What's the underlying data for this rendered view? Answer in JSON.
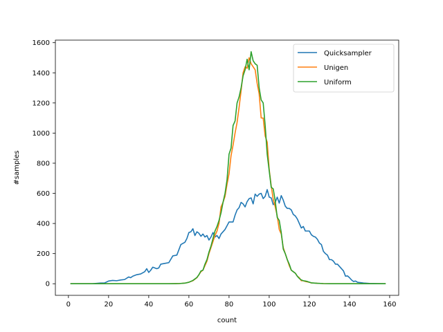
{
  "chart_data": {
    "type": "line",
    "title": "",
    "xlabel": "count",
    "ylabel": "#samples",
    "xlim": [
      -6.5,
      164.5
    ],
    "ylim": [
      -77,
      1617
    ],
    "xticks": [
      0,
      20,
      40,
      60,
      80,
      100,
      120,
      140,
      160
    ],
    "yticks": [
      0,
      200,
      400,
      600,
      800,
      1000,
      1200,
      1400,
      1600
    ],
    "grid": false,
    "legend_position": "upper right",
    "series": [
      {
        "name": "Quicksampler",
        "color": "#1f77b4",
        "points": [
          [
            1,
            0
          ],
          [
            4,
            0
          ],
          [
            8,
            0
          ],
          [
            12,
            0
          ],
          [
            16,
            5
          ],
          [
            18,
            5
          ],
          [
            20,
            18
          ],
          [
            22,
            22
          ],
          [
            24,
            20
          ],
          [
            26,
            25
          ],
          [
            28,
            28
          ],
          [
            30,
            45
          ],
          [
            31,
            40
          ],
          [
            32,
            50
          ],
          [
            34,
            60
          ],
          [
            36,
            65
          ],
          [
            38,
            80
          ],
          [
            39,
            100
          ],
          [
            40,
            75
          ],
          [
            41,
            90
          ],
          [
            42,
            110
          ],
          [
            44,
            100
          ],
          [
            45,
            105
          ],
          [
            46,
            130
          ],
          [
            48,
            135
          ],
          [
            50,
            140
          ],
          [
            52,
            185
          ],
          [
            54,
            190
          ],
          [
            56,
            260
          ],
          [
            58,
            275
          ],
          [
            59,
            300
          ],
          [
            60,
            340
          ],
          [
            61,
            345
          ],
          [
            62,
            365
          ],
          [
            63,
            320
          ],
          [
            64,
            345
          ],
          [
            65,
            335
          ],
          [
            66,
            315
          ],
          [
            67,
            330
          ],
          [
            68,
            310
          ],
          [
            69,
            320
          ],
          [
            70,
            290
          ],
          [
            71,
            310
          ],
          [
            72,
            340
          ],
          [
            73,
            310
          ],
          [
            74,
            320
          ],
          [
            75,
            300
          ],
          [
            76,
            330
          ],
          [
            78,
            360
          ],
          [
            79,
            385
          ],
          [
            80,
            410
          ],
          [
            82,
            410
          ],
          [
            83,
            455
          ],
          [
            84,
            490
          ],
          [
            85,
            505
          ],
          [
            86,
            540
          ],
          [
            87,
            530
          ],
          [
            88,
            510
          ],
          [
            89,
            545
          ],
          [
            90,
            565
          ],
          [
            91,
            570
          ],
          [
            92,
            530
          ],
          [
            93,
            595
          ],
          [
            94,
            580
          ],
          [
            95,
            595
          ],
          [
            96,
            600
          ],
          [
            97,
            565
          ],
          [
            98,
            580
          ],
          [
            99,
            625
          ],
          [
            100,
            575
          ],
          [
            101,
            570
          ],
          [
            102,
            525
          ],
          [
            103,
            540
          ],
          [
            104,
            575
          ],
          [
            105,
            535
          ],
          [
            106,
            585
          ],
          [
            107,
            555
          ],
          [
            108,
            515
          ],
          [
            109,
            500
          ],
          [
            110,
            500
          ],
          [
            111,
            490
          ],
          [
            112,
            460
          ],
          [
            113,
            450
          ],
          [
            114,
            430
          ],
          [
            116,
            370
          ],
          [
            117,
            380
          ],
          [
            118,
            350
          ],
          [
            120,
            350
          ],
          [
            121,
            325
          ],
          [
            122,
            315
          ],
          [
            123,
            310
          ],
          [
            124,
            295
          ],
          [
            125,
            270
          ],
          [
            126,
            260
          ],
          [
            127,
            215
          ],
          [
            128,
            200
          ],
          [
            129,
            190
          ],
          [
            130,
            160
          ],
          [
            131,
            160
          ],
          [
            132,
            150
          ],
          [
            133,
            130
          ],
          [
            134,
            130
          ],
          [
            135,
            115
          ],
          [
            136,
            100
          ],
          [
            137,
            85
          ],
          [
            138,
            50
          ],
          [
            139,
            52
          ],
          [
            140,
            40
          ],
          [
            141,
            25
          ],
          [
            142,
            15
          ],
          [
            143,
            18
          ],
          [
            144,
            10
          ],
          [
            145,
            8
          ],
          [
            147,
            5
          ],
          [
            150,
            2
          ],
          [
            154,
            1
          ],
          [
            158,
            0
          ]
        ]
      },
      {
        "name": "Unigen",
        "color": "#ff7f0e",
        "points": [
          [
            1,
            0
          ],
          [
            10,
            0
          ],
          [
            20,
            0
          ],
          [
            30,
            0
          ],
          [
            40,
            0
          ],
          [
            50,
            0
          ],
          [
            55,
            1
          ],
          [
            58,
            4
          ],
          [
            60,
            10
          ],
          [
            62,
            20
          ],
          [
            64,
            40
          ],
          [
            66,
            80
          ],
          [
            67,
            90
          ],
          [
            68,
            120
          ],
          [
            69,
            150
          ],
          [
            70,
            200
          ],
          [
            71,
            240
          ],
          [
            72,
            280
          ],
          [
            73,
            320
          ],
          [
            74,
            350
          ],
          [
            75,
            400
          ],
          [
            76,
            510
          ],
          [
            77,
            540
          ],
          [
            78,
            580
          ],
          [
            79,
            660
          ],
          [
            80,
            730
          ],
          [
            81,
            850
          ],
          [
            82,
            920
          ],
          [
            83,
            1000
          ],
          [
            84,
            1070
          ],
          [
            85,
            1170
          ],
          [
            86,
            1280
          ],
          [
            87,
            1400
          ],
          [
            88,
            1440
          ],
          [
            89,
            1430
          ],
          [
            90,
            1500
          ],
          [
            91,
            1460
          ],
          [
            92,
            1440
          ],
          [
            93,
            1420
          ],
          [
            94,
            1330
          ],
          [
            95,
            1260
          ],
          [
            96,
            1100
          ],
          [
            97,
            1100
          ],
          [
            98,
            980
          ],
          [
            99,
            940
          ],
          [
            100,
            760
          ],
          [
            101,
            650
          ],
          [
            102,
            560
          ],
          [
            103,
            510
          ],
          [
            104,
            450
          ],
          [
            105,
            360
          ],
          [
            106,
            330
          ],
          [
            107,
            240
          ],
          [
            108,
            200
          ],
          [
            109,
            160
          ],
          [
            110,
            120
          ],
          [
            111,
            90
          ],
          [
            112,
            80
          ],
          [
            113,
            70
          ],
          [
            114,
            50
          ],
          [
            115,
            40
          ],
          [
            116,
            20
          ],
          [
            117,
            20
          ],
          [
            118,
            15
          ],
          [
            120,
            10
          ],
          [
            121,
            5
          ],
          [
            122,
            5
          ],
          [
            124,
            3
          ],
          [
            127,
            1
          ],
          [
            130,
            0
          ],
          [
            140,
            0
          ],
          [
            150,
            0
          ],
          [
            158,
            0
          ]
        ]
      },
      {
        "name": "Uniform",
        "color": "#2ca02c",
        "points": [
          [
            1,
            0
          ],
          [
            10,
            0
          ],
          [
            20,
            0
          ],
          [
            30,
            0
          ],
          [
            40,
            0
          ],
          [
            50,
            0
          ],
          [
            55,
            1
          ],
          [
            58,
            4
          ],
          [
            60,
            10
          ],
          [
            62,
            22
          ],
          [
            64,
            42
          ],
          [
            65,
            60
          ],
          [
            66,
            85
          ],
          [
            67,
            90
          ],
          [
            68,
            130
          ],
          [
            69,
            160
          ],
          [
            70,
            210
          ],
          [
            71,
            250
          ],
          [
            72,
            300
          ],
          [
            73,
            350
          ],
          [
            74,
            380
          ],
          [
            75,
            420
          ],
          [
            76,
            470
          ],
          [
            77,
            540
          ],
          [
            78,
            600
          ],
          [
            79,
            690
          ],
          [
            80,
            860
          ],
          [
            81,
            900
          ],
          [
            82,
            1050
          ],
          [
            83,
            1080
          ],
          [
            84,
            1200
          ],
          [
            85,
            1240
          ],
          [
            86,
            1300
          ],
          [
            87,
            1380
          ],
          [
            88,
            1420
          ],
          [
            89,
            1490
          ],
          [
            90,
            1420
          ],
          [
            91,
            1540
          ],
          [
            92,
            1480
          ],
          [
            93,
            1460
          ],
          [
            94,
            1450
          ],
          [
            95,
            1300
          ],
          [
            96,
            1220
          ],
          [
            97,
            1200
          ],
          [
            98,
            1050
          ],
          [
            99,
            860
          ],
          [
            100,
            750
          ],
          [
            101,
            640
          ],
          [
            102,
            630
          ],
          [
            103,
            550
          ],
          [
            104,
            440
          ],
          [
            105,
            420
          ],
          [
            106,
            340
          ],
          [
            107,
            230
          ],
          [
            108,
            200
          ],
          [
            109,
            160
          ],
          [
            110,
            130
          ],
          [
            111,
            90
          ],
          [
            112,
            80
          ],
          [
            113,
            70
          ],
          [
            114,
            50
          ],
          [
            115,
            35
          ],
          [
            116,
            25
          ],
          [
            117,
            20
          ],
          [
            118,
            18
          ],
          [
            119,
            15
          ],
          [
            120,
            10
          ],
          [
            121,
            6
          ],
          [
            122,
            5
          ],
          [
            124,
            3
          ],
          [
            127,
            1
          ],
          [
            130,
            0
          ],
          [
            140,
            0
          ],
          [
            150,
            0
          ],
          [
            158,
            0
          ]
        ]
      }
    ]
  }
}
